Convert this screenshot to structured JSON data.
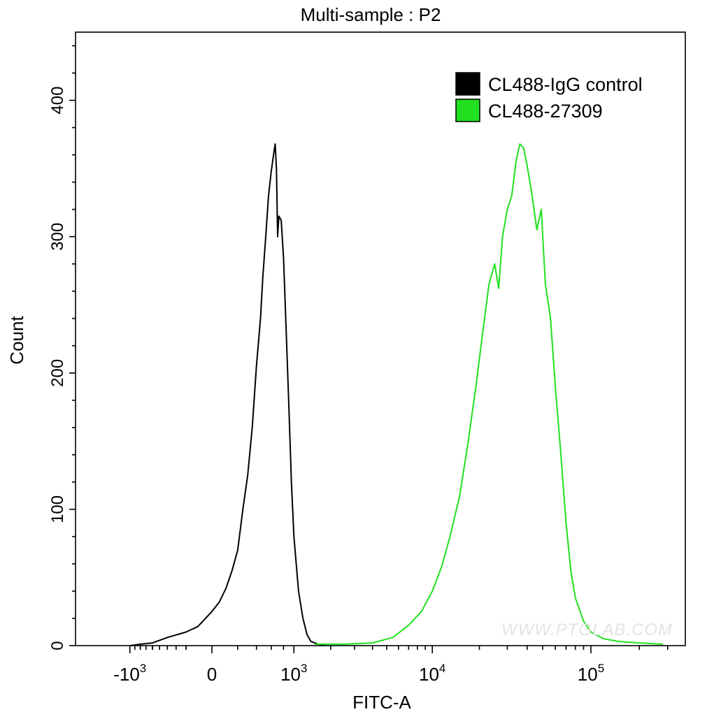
{
  "chart_data": {
    "type": "line",
    "title": "Multi-sample : P2",
    "xlabel": "FITC-A",
    "ylabel": "Count",
    "x_scale": "biexponential",
    "xlim": [
      -2000,
      450000
    ],
    "ylim": [
      0,
      450
    ],
    "x_ticks": [
      {
        "value": -1000,
        "base": "-10",
        "exp": "3"
      },
      {
        "value": 0,
        "base": "0",
        "exp": ""
      },
      {
        "value": 1000,
        "base": "10",
        "exp": "3"
      },
      {
        "value": 10000,
        "base": "10",
        "exp": "4"
      },
      {
        "value": 100000,
        "base": "10",
        "exp": "5"
      }
    ],
    "y_ticks": [
      {
        "value": 0,
        "label": "0"
      },
      {
        "value": 100,
        "label": "100"
      },
      {
        "value": 200,
        "label": "200"
      },
      {
        "value": 300,
        "label": "300"
      },
      {
        "value": 400,
        "label": "400"
      }
    ],
    "legend_position": "top-right",
    "watermark": "WWW.PTGLAB.COM",
    "series": [
      {
        "name": "CL488-IgG control",
        "color": "#000000",
        "points": [
          [
            -1000,
            0
          ],
          [
            -800,
            1
          ],
          [
            -600,
            2
          ],
          [
            -400,
            6
          ],
          [
            -200,
            10
          ],
          [
            -100,
            14
          ],
          [
            0,
            25
          ],
          [
            50,
            32
          ],
          [
            100,
            42
          ],
          [
            150,
            55
          ],
          [
            200,
            70
          ],
          [
            250,
            100
          ],
          [
            300,
            125
          ],
          [
            350,
            160
          ],
          [
            400,
            205
          ],
          [
            450,
            240
          ],
          [
            480,
            270
          ],
          [
            520,
            300
          ],
          [
            560,
            330
          ],
          [
            600,
            348
          ],
          [
            640,
            362
          ],
          [
            660,
            368
          ],
          [
            680,
            350
          ],
          [
            700,
            300
          ],
          [
            720,
            315
          ],
          [
            760,
            312
          ],
          [
            800,
            285
          ],
          [
            850,
            230
          ],
          [
            900,
            175
          ],
          [
            950,
            120
          ],
          [
            1000,
            80
          ],
          [
            1100,
            40
          ],
          [
            1200,
            20
          ],
          [
            1300,
            8
          ],
          [
            1400,
            3
          ],
          [
            1600,
            1
          ],
          [
            1800,
            0
          ]
        ]
      },
      {
        "name": "CL488-27309",
        "color": "#22e01f",
        "points": [
          [
            1500,
            1
          ],
          [
            2500,
            1
          ],
          [
            4000,
            2
          ],
          [
            5500,
            6
          ],
          [
            7000,
            15
          ],
          [
            8500,
            25
          ],
          [
            10000,
            40
          ],
          [
            11500,
            58
          ],
          [
            13000,
            80
          ],
          [
            15000,
            110
          ],
          [
            17000,
            150
          ],
          [
            19000,
            190
          ],
          [
            21000,
            230
          ],
          [
            23000,
            265
          ],
          [
            25000,
            280
          ],
          [
            26500,
            262
          ],
          [
            28000,
            300
          ],
          [
            30000,
            320
          ],
          [
            32000,
            330
          ],
          [
            34000,
            355
          ],
          [
            36000,
            368
          ],
          [
            38000,
            365
          ],
          [
            40000,
            352
          ],
          [
            43000,
            330
          ],
          [
            46000,
            305
          ],
          [
            49000,
            320
          ],
          [
            52000,
            265
          ],
          [
            56000,
            240
          ],
          [
            60000,
            190
          ],
          [
            65000,
            140
          ],
          [
            70000,
            90
          ],
          [
            75000,
            55
          ],
          [
            80000,
            35
          ],
          [
            90000,
            18
          ],
          [
            100000,
            10
          ],
          [
            120000,
            5
          ],
          [
            150000,
            3
          ],
          [
            200000,
            2
          ],
          [
            280000,
            1
          ]
        ]
      }
    ]
  }
}
